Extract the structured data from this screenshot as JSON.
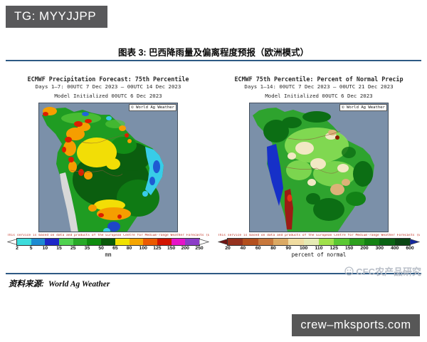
{
  "page": {
    "corner_tag": "TG: MYYJJPP",
    "figure_title": "图表 3: 巴西降雨量及偏离程度预报（欧洲模式）",
    "source_label": "资料来源:",
    "source_value": "World Ag Weather",
    "brand_watermark": "CFC农产品研究",
    "site_watermark": "crew–mksports.com",
    "colors": {
      "accent_rule": "#2e5a84",
      "corner_tag_bg": "#59595b",
      "site_watermark_bg": "#575757",
      "map_ocean": "#7b90a9"
    }
  },
  "maps": [
    {
      "id": "precipitation-forecast",
      "title": "ECMWF Precipitation Forecast: 75th Percentile",
      "subtitle": "Days 1–7: 00UTC 7 Dec 2023 – 00UTC 14 Dec 2023",
      "init_line": "Model Initialized 00UTC 6 Dec 2023",
      "attribution": "© World Ag Weather",
      "disclaimer": "This service is based on data and products of the European Centre for Medium-range Weather Forecasts (ECMWF)",
      "colorbar": {
        "unit": "mm",
        "ticks": [
          "2",
          "5",
          "10",
          "15",
          "25",
          "35",
          "50",
          "65",
          "80",
          "100",
          "125",
          "150",
          "200",
          "250"
        ],
        "segment_colors": [
          "#3cdcdc",
          "#1e8cd2",
          "#1e28c8",
          "#50d250",
          "#28aa28",
          "#0f8c0f",
          "#0a5a0a",
          "#f0e100",
          "#f5a500",
          "#eb5a00",
          "#d21400",
          "#e614c8",
          "#8c3cc8"
        ],
        "left_arrow_color": "#ffffff",
        "right_arrow_color": "#ffffff"
      }
    },
    {
      "id": "percent-of-normal",
      "title": "ECMWF 75th Percentile: Percent of Normal Precip",
      "subtitle": "Days 1–14: 00UTC 7 Dec 2023 – 00UTC 21 Dec 2023",
      "init_line": "Model Initialized 00UTC 6 Dec 2023",
      "attribution": "© World Ag Weather",
      "disclaimer": "This service is based on data and products of the European Centre for Medium-range Weather Forecasts (ECMWF)",
      "colorbar": {
        "unit": "percent of normal",
        "ticks": [
          "20",
          "40",
          "60",
          "80",
          "90",
          "100",
          "110",
          "125",
          "150",
          "200",
          "300",
          "400",
          "600"
        ],
        "segment_colors": [
          "#96321e",
          "#b4501e",
          "#c8783c",
          "#dcaa64",
          "#f0dca0",
          "#e6ebb4",
          "#a0e14b",
          "#5ac832",
          "#2da01e",
          "#148214",
          "#0a6414",
          "#0a4614"
        ],
        "left_arrow_color": "#6e1414",
        "right_arrow_color": "#1428a0"
      }
    }
  ]
}
